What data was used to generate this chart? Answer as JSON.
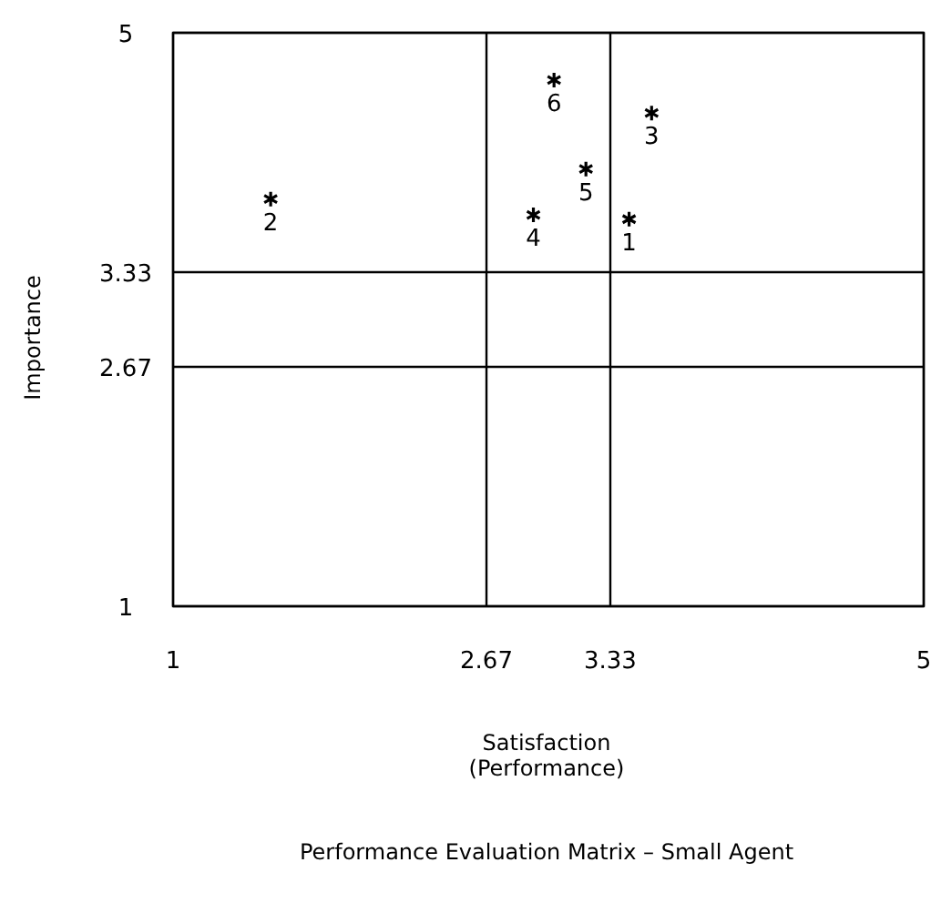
{
  "chart_data": {
    "type": "scatter",
    "title": "Performance Evaluation Matrix – Small Agent",
    "xlabel": "Satisfaction\n(Performance)",
    "ylabel": "Importance",
    "x": [
      3.43,
      1.52,
      3.55,
      2.92,
      3.2,
      3.03
    ],
    "values": [
      3.7,
      3.84,
      4.44,
      3.73,
      4.05,
      4.67
    ],
    "color": "#000000",
    "marker": "cross",
    "xlim": [
      1,
      5
    ],
    "xticks": [
      1,
      2.67,
      3.33,
      5
    ],
    "ylim": [
      1,
      5
    ],
    "yticks": [
      1,
      2.67,
      3.33,
      5
    ],
    "grid": true,
    "annotations": [
      {
        "text": "1",
        "x": 3.43,
        "y": 3.7
      },
      {
        "text": "2",
        "x": 1.52,
        "y": 3.84
      },
      {
        "text": "3",
        "x": 3.55,
        "y": 4.44
      },
      {
        "text": "4",
        "x": 2.92,
        "y": 3.73
      },
      {
        "text": "5",
        "x": 3.2,
        "y": 4.05
      },
      {
        "text": "6",
        "x": 3.03,
        "y": 4.67
      }
    ]
  }
}
